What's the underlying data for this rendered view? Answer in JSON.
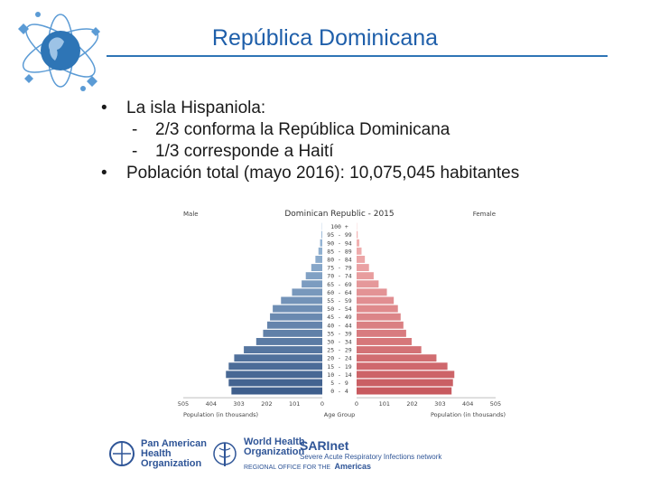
{
  "slide": {
    "title": "República Dominicana",
    "bullets": [
      {
        "text": "La isla Hispaniola:",
        "subs": [
          "2/3 conforma la República Dominicana",
          "1/3 corresponde a Haití"
        ]
      },
      {
        "text": "Población total (mayo 2016): 10,075,045 habitantes",
        "subs": []
      }
    ]
  },
  "chart_data": {
    "type": "bar",
    "title": "Dominican Republic - 2015",
    "left_label": "Male",
    "right_label": "Female",
    "xlabel_left": "Population (in thousands)",
    "xlabel_center": "Age Group",
    "xlabel_right": "Population (in thousands)",
    "x_ticks_left": [
      "505",
      "404",
      "303",
      "202",
      "101",
      "0"
    ],
    "x_ticks_right": [
      "0",
      "101",
      "202",
      "303",
      "404",
      "505"
    ],
    "xlim": [
      0,
      505
    ],
    "categories": [
      "100 +",
      "95 - 99",
      "90 - 94",
      "85 - 89",
      "80 - 84",
      "75 - 79",
      "70 - 74",
      "65 - 69",
      "60 - 64",
      "55 - 59",
      "50 - 54",
      "45 - 49",
      "40 - 44",
      "35 - 39",
      "30 - 34",
      "25 - 29",
      "20 - 24",
      "15 - 19",
      "10 - 14",
      "5 - 9",
      "0 - 4"
    ],
    "series": [
      {
        "name": "Male",
        "color": "#3e6593",
        "values": [
          1,
          3,
          8,
          14,
          25,
          40,
          60,
          75,
          110,
          150,
          180,
          190,
          200,
          215,
          240,
          285,
          320,
          340,
          350,
          340,
          330
        ]
      },
      {
        "name": "Female",
        "color": "#d95f63",
        "values": [
          1,
          4,
          10,
          18,
          30,
          45,
          62,
          80,
          110,
          135,
          150,
          160,
          170,
          180,
          200,
          235,
          290,
          330,
          355,
          350,
          345
        ]
      }
    ]
  },
  "footer": {
    "paho": {
      "line1": "Pan American",
      "line2": "Health",
      "line3": "Organization"
    },
    "who": {
      "line1": "World Health",
      "line2": "Organization",
      "line3": "Americas",
      "sub": "REGIONAL OFFICE FOR THE"
    },
    "sari": {
      "name": "SARInet",
      "desc": "Severe Acute Respiratory Infections network"
    }
  },
  "colors": {
    "accent": "#1f5faa",
    "male": "#3e6593",
    "female": "#d95f63"
  }
}
